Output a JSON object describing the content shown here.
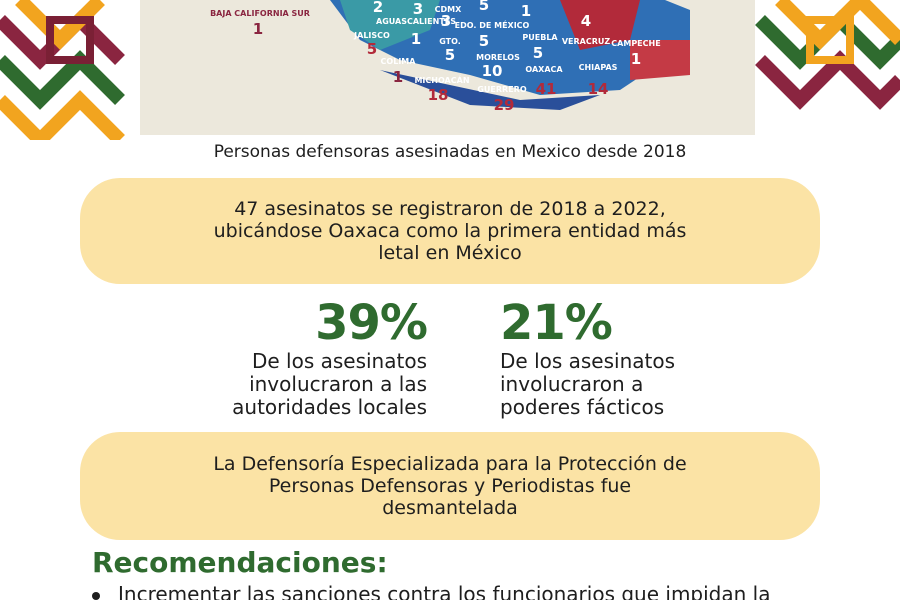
{
  "map": {
    "labels": [
      {
        "name": "BAJA CALIFORNIA SUR",
        "count": "1"
      },
      {
        "name": "CDMX",
        "count": "3"
      },
      {
        "name": "AGUASCALIENTES",
        "count": "3"
      },
      {
        "name": "JALISCO",
        "count": "5"
      },
      {
        "name": "COLIMA",
        "count": "1"
      },
      {
        "name": "MICHOACÁN",
        "count": "18"
      },
      {
        "name": "GTO.",
        "count": "5"
      },
      {
        "name": "EDO. DE MÉXICO",
        "count": "5"
      },
      {
        "name": "MORELOS",
        "count": "10"
      },
      {
        "name": "GUERRERO",
        "count": "29"
      },
      {
        "name": "PUEBLA",
        "count": "5"
      },
      {
        "name": "OAXACA",
        "count": "41"
      },
      {
        "name": "VERACRUZ",
        "count": "4"
      },
      {
        "name": "CHIAPAS",
        "count": "14"
      },
      {
        "name": "CAMPECHE",
        "count": "1"
      }
    ],
    "other_counts": [
      "2",
      "5",
      "1",
      "1"
    ]
  },
  "caption": "Personas defensoras asesinadas en Mexico desde 2018",
  "summary": [
    "47 asesinatos se registraron de 2018 a 2022,",
    "ubicándose Oaxaca como la primera entidad más",
    "letal en México"
  ],
  "stats": [
    {
      "value": "39%",
      "lines": [
        "De los asesinatos",
        "involucraron a las",
        "autoridades locales"
      ]
    },
    {
      "value": "21%",
      "lines": [
        "De los asesinatos",
        "involucraron a",
        "poderes fácticos"
      ]
    }
  ],
  "notice": [
    "La Defensoría Especializada para la Protección de",
    "Personas Defensoras y Periodistas fue",
    "desmantelada"
  ],
  "recommendations": {
    "heading": "Recomendaciones:",
    "items": [
      "Incrementar las sanciones contra los funcionarios que impidan la"
    ]
  }
}
